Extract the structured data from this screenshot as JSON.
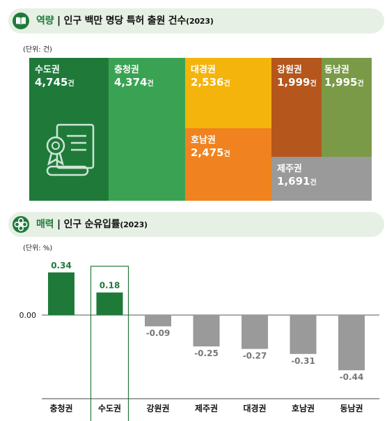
{
  "colors": {
    "green_dark": "#1f7a3a",
    "green_mid": "#3aa353",
    "yellow": "#f5b40c",
    "orange": "#f0831f",
    "brown": "#b5561d",
    "olive": "#7a9a48",
    "gray": "#9a9a9a",
    "header_bg": "#e6f0e4"
  },
  "section1": {
    "title_accent": "역량",
    "title_sep": " | ",
    "title_main": "인구 백만 명당 특허 출원 건수",
    "title_year": "(2023)",
    "unit": "(단위: 건)",
    "icon": "book-icon"
  },
  "section2": {
    "title_accent": "매력",
    "title_sep": " | ",
    "title_main": "인구 순유입률",
    "title_year": "(2023)",
    "unit": "(단위: %)",
    "icon": "flower-icon"
  },
  "treemap": {
    "unit_suffix": "건",
    "tiles": [
      {
        "name": "수도권",
        "value": "4,745",
        "color": "#1f7a3a",
        "icon": "certificate-scroll-icon"
      },
      {
        "name": "충청권",
        "value": "4,374",
        "color": "#3aa353"
      },
      {
        "name": "대경권",
        "value": "2,536",
        "color": "#f5b40c"
      },
      {
        "name": "호남권",
        "value": "2,475",
        "color": "#f0831f"
      },
      {
        "name": "강원권",
        "value": "1,999",
        "color": "#b5561d"
      },
      {
        "name": "동남권",
        "value": "1,995",
        "color": "#7a9a48"
      },
      {
        "name": "제주권",
        "value": "1,691",
        "color": "#9a9a9a"
      }
    ]
  },
  "chart_data": {
    "type": "bar",
    "categories": [
      "충청권",
      "수도권",
      "강원권",
      "제주권",
      "대경권",
      "호남권",
      "동남권"
    ],
    "values": [
      0.34,
      0.18,
      -0.09,
      -0.25,
      -0.27,
      -0.31,
      -0.44
    ],
    "value_labels": [
      "0.34",
      "0.18",
      "-0.09",
      "-0.25",
      "-0.27",
      "-0.31",
      "-0.44"
    ],
    "zero_label": "0.00",
    "highlight": "수도권",
    "positive_color": "#1f7a3a",
    "negative_color": "#9a9a9a",
    "ylim": [
      -0.5,
      0.4
    ]
  }
}
